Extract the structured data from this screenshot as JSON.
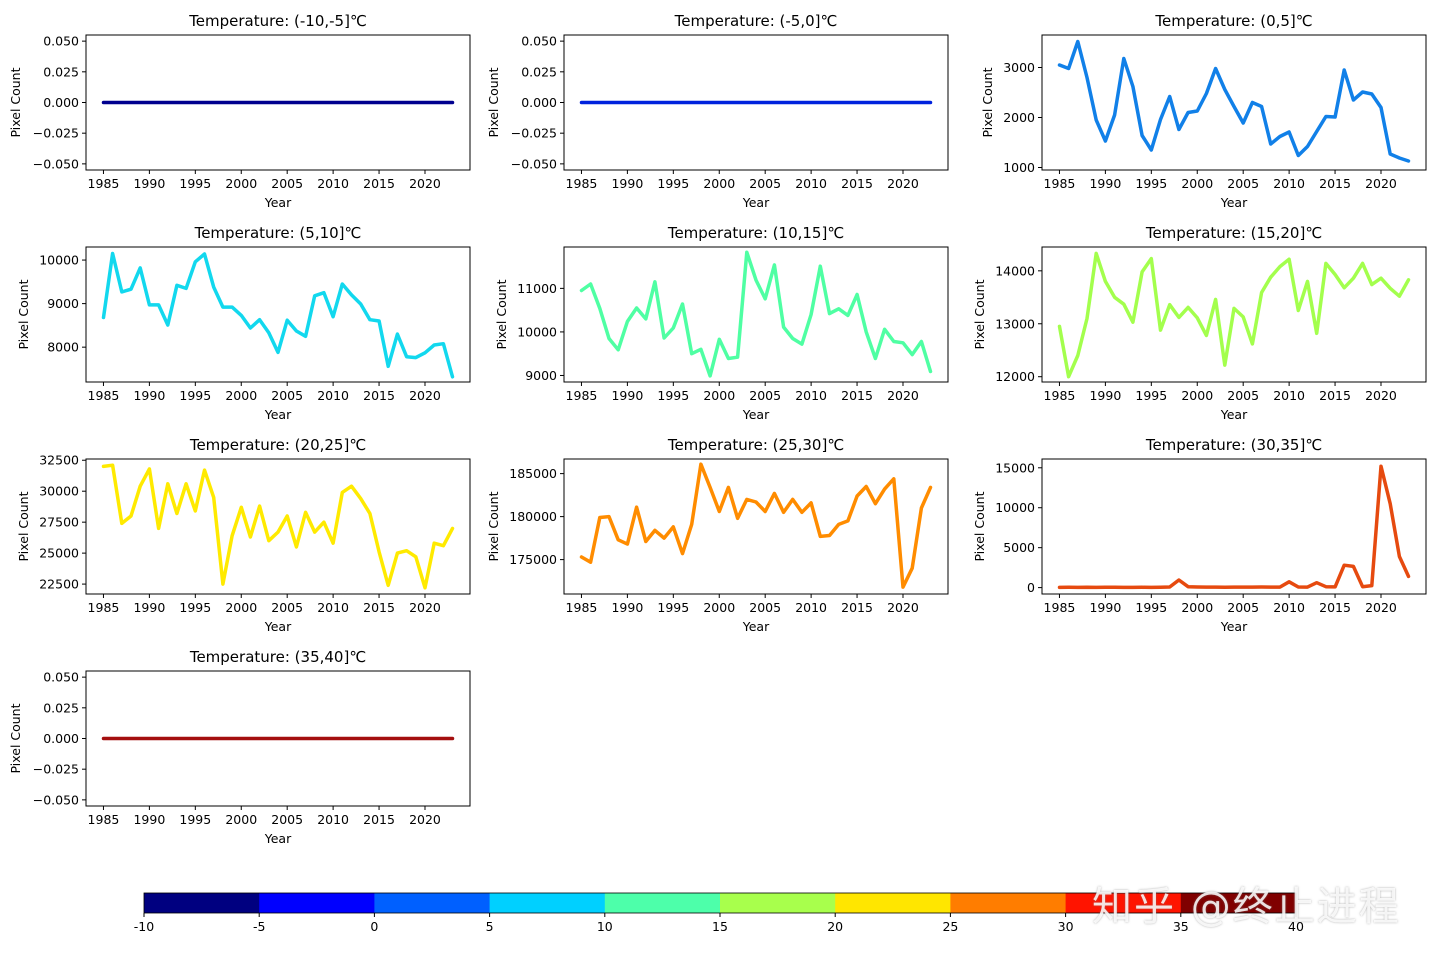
{
  "chart_data": [
    {
      "type": "line",
      "title": "Temperature: (-10,-5]℃",
      "xlabel": "Year",
      "ylabel": "Pixel Count",
      "color": "#00008f",
      "ylim": [
        -0.055,
        0.055
      ],
      "yticks": [
        -0.05,
        -0.025,
        0,
        0.025,
        0.05
      ],
      "ytick_labels": [
        "−0.050",
        "−0.025",
        "0.000",
        "0.025",
        "0.050"
      ],
      "xticks": [
        1985,
        1990,
        1995,
        2000,
        2005,
        2010,
        2015,
        2020
      ],
      "x": [
        1985,
        1986,
        1987,
        1988,
        1989,
        1990,
        1991,
        1992,
        1993,
        1994,
        1995,
        1996,
        1997,
        1998,
        1999,
        2000,
        2001,
        2002,
        2003,
        2004,
        2005,
        2006,
        2007,
        2008,
        2009,
        2010,
        2011,
        2012,
        2013,
        2014,
        2015,
        2016,
        2017,
        2018,
        2019,
        2020,
        2021,
        2022,
        2023
      ],
      "y": [
        0,
        0,
        0,
        0,
        0,
        0,
        0,
        0,
        0,
        0,
        0,
        0,
        0,
        0,
        0,
        0,
        0,
        0,
        0,
        0,
        0,
        0,
        0,
        0,
        0,
        0,
        0,
        0,
        0,
        0,
        0,
        0,
        0,
        0,
        0,
        0,
        0,
        0,
        0
      ]
    },
    {
      "type": "line",
      "title": "Temperature: (-5,0]℃",
      "xlabel": "Year",
      "ylabel": "Pixel Count",
      "color": "#0022dd",
      "ylim": [
        -0.055,
        0.055
      ],
      "yticks": [
        -0.05,
        -0.025,
        0,
        0.025,
        0.05
      ],
      "ytick_labels": [
        "−0.050",
        "−0.025",
        "0.000",
        "0.025",
        "0.050"
      ],
      "xticks": [
        1985,
        1990,
        1995,
        2000,
        2005,
        2010,
        2015,
        2020
      ],
      "x": [
        1985,
        1986,
        1987,
        1988,
        1989,
        1990,
        1991,
        1992,
        1993,
        1994,
        1995,
        1996,
        1997,
        1998,
        1999,
        2000,
        2001,
        2002,
        2003,
        2004,
        2005,
        2006,
        2007,
        2008,
        2009,
        2010,
        2011,
        2012,
        2013,
        2014,
        2015,
        2016,
        2017,
        2018,
        2019,
        2020,
        2021,
        2022,
        2023
      ],
      "y": [
        0,
        0,
        0,
        0,
        0,
        0,
        0,
        0,
        0,
        0,
        0,
        0,
        0,
        0,
        0,
        0,
        0,
        0,
        0,
        0,
        0,
        0,
        0,
        0,
        0,
        0,
        0,
        0,
        0,
        0,
        0,
        0,
        0,
        0,
        0,
        0,
        0,
        0,
        0
      ]
    },
    {
      "type": "line",
      "title": "Temperature: (0,5]℃",
      "xlabel": "Year",
      "ylabel": "Pixel Count",
      "color": "#1180e8",
      "ylim": [
        950,
        3650
      ],
      "yticks": [
        1000,
        2000,
        3000
      ],
      "ytick_labels": [
        "1000",
        "2000",
        "3000"
      ],
      "xticks": [
        1985,
        1990,
        1995,
        2000,
        2005,
        2010,
        2015,
        2020
      ],
      "x": [
        1985,
        1986,
        1987,
        1988,
        1989,
        1990,
        1991,
        1992,
        1993,
        1994,
        1995,
        1996,
        1997,
        1998,
        1999,
        2000,
        2001,
        2002,
        2003,
        2004,
        2005,
        2006,
        2007,
        2008,
        2009,
        2010,
        2011,
        2012,
        2013,
        2014,
        2015,
        2016,
        2017,
        2018,
        2019,
        2020,
        2021,
        2022,
        2023
      ],
      "y": [
        3050,
        2980,
        3520,
        2800,
        1950,
        1530,
        2050,
        3180,
        2620,
        1640,
        1350,
        1960,
        2420,
        1760,
        2100,
        2130,
        2480,
        2980,
        2560,
        2220,
        1890,
        2300,
        2220,
        1470,
        1620,
        1710,
        1240,
        1420,
        1720,
        2020,
        2010,
        2950,
        2350,
        2510,
        2470,
        2200,
        1270,
        1190,
        1130
      ]
    },
    {
      "type": "line",
      "title": "Temperature: (5,10]℃",
      "xlabel": "Year",
      "ylabel": "Pixel Count",
      "color": "#12d8ee",
      "ylim": [
        7200,
        10300
      ],
      "yticks": [
        8000,
        9000,
        10000
      ],
      "ytick_labels": [
        "8000",
        "9000",
        "10000"
      ],
      "xticks": [
        1985,
        1990,
        1995,
        2000,
        2005,
        2010,
        2015,
        2020
      ],
      "x": [
        1985,
        1986,
        1987,
        1988,
        1989,
        1990,
        1991,
        1992,
        1993,
        1994,
        1995,
        1996,
        1997,
        1998,
        1999,
        2000,
        2001,
        2002,
        2003,
        2004,
        2005,
        2006,
        2007,
        2008,
        2009,
        2010,
        2011,
        2012,
        2013,
        2014,
        2015,
        2016,
        2017,
        2018,
        2019,
        2020,
        2021,
        2022,
        2023
      ],
      "y": [
        8680,
        10150,
        9270,
        9330,
        9820,
        8970,
        8970,
        8510,
        9420,
        9350,
        9960,
        10140,
        9380,
        8920,
        8920,
        8730,
        8440,
        8630,
        8330,
        7880,
        8620,
        8370,
        8250,
        9180,
        9250,
        8700,
        9450,
        9200,
        8990,
        8630,
        8600,
        7560,
        8300,
        7780,
        7760,
        7870,
        8050,
        8080,
        7320
      ]
    },
    {
      "type": "line",
      "title": "Temperature: (10,15]℃",
      "xlabel": "Year",
      "ylabel": "Pixel Count",
      "color": "#4fffa3",
      "ylim": [
        8850,
        11950
      ],
      "yticks": [
        9000,
        10000,
        11000
      ],
      "ytick_labels": [
        "9000",
        "10000",
        "11000"
      ],
      "xticks": [
        1985,
        1990,
        1995,
        2000,
        2005,
        2010,
        2015,
        2020
      ],
      "x": [
        1985,
        1986,
        1987,
        1988,
        1989,
        1990,
        1991,
        1992,
        1993,
        1994,
        1995,
        1996,
        1997,
        1998,
        1999,
        2000,
        2001,
        2002,
        2003,
        2004,
        2005,
        2006,
        2007,
        2008,
        2009,
        2010,
        2011,
        2012,
        2013,
        2014,
        2015,
        2016,
        2017,
        2018,
        2019,
        2020,
        2021,
        2022,
        2023
      ],
      "y": [
        10950,
        11100,
        10540,
        9850,
        9590,
        10240,
        10550,
        10300,
        11150,
        9860,
        10090,
        10640,
        9500,
        9600,
        8990,
        9830,
        9390,
        9420,
        11830,
        11190,
        10760,
        11540,
        10110,
        9850,
        9720,
        10400,
        11510,
        10420,
        10530,
        10380,
        10860,
        10000,
        9390,
        10060,
        9780,
        9750,
        9480,
        9780,
        9090
      ]
    },
    {
      "type": "line",
      "title": "Temperature: (15,20]℃",
      "xlabel": "Year",
      "ylabel": "Pixel Count",
      "color": "#a3ff4d",
      "ylim": [
        11900,
        14450
      ],
      "yticks": [
        12000,
        13000,
        14000
      ],
      "ytick_labels": [
        "12000",
        "13000",
        "14000"
      ],
      "xticks": [
        1985,
        1990,
        1995,
        2000,
        2005,
        2010,
        2015,
        2020
      ],
      "x": [
        1985,
        1986,
        1987,
        1988,
        1989,
        1990,
        1991,
        1992,
        1993,
        1994,
        1995,
        1996,
        1997,
        1998,
        1999,
        2000,
        2001,
        2002,
        2003,
        2004,
        2005,
        2006,
        2007,
        2008,
        2009,
        2010,
        2011,
        2012,
        2013,
        2014,
        2015,
        2016,
        2017,
        2018,
        2019,
        2020,
        2021,
        2022,
        2023
      ],
      "y": [
        12950,
        12000,
        12400,
        13100,
        14330,
        13800,
        13500,
        13370,
        13030,
        13980,
        14230,
        12880,
        13360,
        13120,
        13310,
        13110,
        12780,
        13460,
        12220,
        13290,
        13130,
        12620,
        13590,
        13880,
        14080,
        14220,
        13250,
        13800,
        12820,
        14140,
        13930,
        13680,
        13860,
        14140,
        13740,
        13860,
        13670,
        13520,
        13830
      ]
    },
    {
      "type": "line",
      "title": "Temperature: (20,25]℃",
      "xlabel": "Year",
      "ylabel": "Pixel Count",
      "color": "#ffea00",
      "ylim": [
        21700,
        32600
      ],
      "yticks": [
        22500,
        25000,
        27500,
        30000,
        32500
      ],
      "ytick_labels": [
        "22500",
        "25000",
        "27500",
        "30000",
        "32500"
      ],
      "xticks": [
        1985,
        1990,
        1995,
        2000,
        2005,
        2010,
        2015,
        2020
      ],
      "x": [
        1985,
        1986,
        1987,
        1988,
        1989,
        1990,
        1991,
        1992,
        1993,
        1994,
        1995,
        1996,
        1997,
        1998,
        1999,
        2000,
        2001,
        2002,
        2003,
        2004,
        2005,
        2006,
        2007,
        2008,
        2009,
        2010,
        2011,
        2012,
        2013,
        2014,
        2015,
        2016,
        2017,
        2018,
        2019,
        2020,
        2021,
        2022,
        2023
      ],
      "y": [
        32000,
        32100,
        27400,
        28000,
        30400,
        31800,
        27000,
        30600,
        28200,
        30600,
        28400,
        31700,
        29500,
        22500,
        26400,
        28700,
        26300,
        28800,
        26000,
        26700,
        28000,
        25500,
        28300,
        26700,
        27500,
        25800,
        29900,
        30400,
        29400,
        28200,
        25100,
        22400,
        25000,
        25200,
        24700,
        22200,
        25800,
        25600,
        27000
      ]
    },
    {
      "type": "line",
      "title": "Temperature: (25,30]℃",
      "xlabel": "Year",
      "ylabel": "Pixel Count",
      "color": "#ff8c00",
      "ylim": [
        171000,
        186700
      ],
      "yticks": [
        175000,
        180000,
        185000
      ],
      "ytick_labels": [
        "175000",
        "180000",
        "185000"
      ],
      "xticks": [
        1985,
        1990,
        1995,
        2000,
        2005,
        2010,
        2015,
        2020
      ],
      "x": [
        1985,
        1986,
        1987,
        1988,
        1989,
        1990,
        1991,
        1992,
        1993,
        1994,
        1995,
        1996,
        1997,
        1998,
        1999,
        2000,
        2001,
        2002,
        2003,
        2004,
        2005,
        2006,
        2007,
        2008,
        2009,
        2010,
        2011,
        2012,
        2013,
        2014,
        2015,
        2016,
        2017,
        2018,
        2019,
        2020,
        2021,
        2022,
        2023
      ],
      "y": [
        175300,
        174700,
        179900,
        180000,
        177300,
        176800,
        181100,
        177100,
        178400,
        177500,
        178800,
        175700,
        179100,
        186100,
        183400,
        180600,
        183400,
        179800,
        182000,
        181700,
        180600,
        182700,
        180500,
        182000,
        180500,
        181600,
        177700,
        177800,
        179100,
        179500,
        182400,
        183500,
        181500,
        183200,
        184400,
        171800,
        174000,
        181000,
        183400
      ]
    },
    {
      "type": "line",
      "title": "Temperature: (30,35]℃",
      "xlabel": "Year",
      "ylabel": "Pixel Count",
      "color": "#e64a0f",
      "ylim": [
        -800,
        16100
      ],
      "yticks": [
        0,
        5000,
        10000,
        15000
      ],
      "ytick_labels": [
        "0",
        "5000",
        "10000",
        "15000"
      ],
      "xticks": [
        1985,
        1990,
        1995,
        2000,
        2005,
        2010,
        2015,
        2020
      ],
      "x": [
        1985,
        1986,
        1987,
        1988,
        1989,
        1990,
        1991,
        1992,
        1993,
        1994,
        1995,
        1996,
        1997,
        1998,
        1999,
        2000,
        2001,
        2002,
        2003,
        2004,
        2005,
        2006,
        2007,
        2008,
        2009,
        2010,
        2011,
        2012,
        2013,
        2014,
        2015,
        2016,
        2017,
        2018,
        2019,
        2020,
        2021,
        2022,
        2023
      ],
      "y": [
        30,
        40,
        20,
        50,
        30,
        40,
        50,
        30,
        20,
        40,
        30,
        50,
        80,
        950,
        120,
        80,
        60,
        60,
        40,
        60,
        70,
        60,
        80,
        60,
        70,
        730,
        80,
        60,
        620,
        120,
        90,
        2800,
        2650,
        120,
        250,
        15200,
        10500,
        3900,
        1400
      ]
    },
    {
      "type": "line",
      "title": "Temperature: (35,40]℃",
      "xlabel": "Year",
      "ylabel": "Pixel Count",
      "color": "#a40f0f",
      "ylim": [
        -0.055,
        0.055
      ],
      "yticks": [
        -0.05,
        -0.025,
        0,
        0.025,
        0.05
      ],
      "ytick_labels": [
        "−0.050",
        "−0.025",
        "0.000",
        "0.025",
        "0.050"
      ],
      "xticks": [
        1985,
        1990,
        1995,
        2000,
        2005,
        2010,
        2015,
        2020
      ],
      "x": [
        1985,
        1986,
        1987,
        1988,
        1989,
        1990,
        1991,
        1992,
        1993,
        1994,
        1995,
        1996,
        1997,
        1998,
        1999,
        2000,
        2001,
        2002,
        2003,
        2004,
        2005,
        2006,
        2007,
        2008,
        2009,
        2010,
        2011,
        2012,
        2013,
        2014,
        2015,
        2016,
        2017,
        2018,
        2019,
        2020,
        2021,
        2022,
        2023
      ],
      "y": [
        0,
        0,
        0,
        0,
        0,
        0,
        0,
        0,
        0,
        0,
        0,
        0,
        0,
        0,
        0,
        0,
        0,
        0,
        0,
        0,
        0,
        0,
        0,
        0,
        0,
        0,
        0,
        0,
        0,
        0,
        0,
        0,
        0,
        0,
        0,
        0,
        0,
        0,
        0
      ]
    }
  ],
  "colorbar": {
    "ticks": [
      "-10",
      "-5",
      "0",
      "5",
      "10",
      "15",
      "20",
      "25",
      "30",
      "35",
      "40"
    ],
    "colors": [
      "#000080",
      "#0000ff",
      "#0060ff",
      "#00d0ff",
      "#4dffaa",
      "#a8ff4c",
      "#ffe600",
      "#ff7d00",
      "#ff1400",
      "#800000"
    ]
  },
  "watermark": "知乎 @终止进程"
}
